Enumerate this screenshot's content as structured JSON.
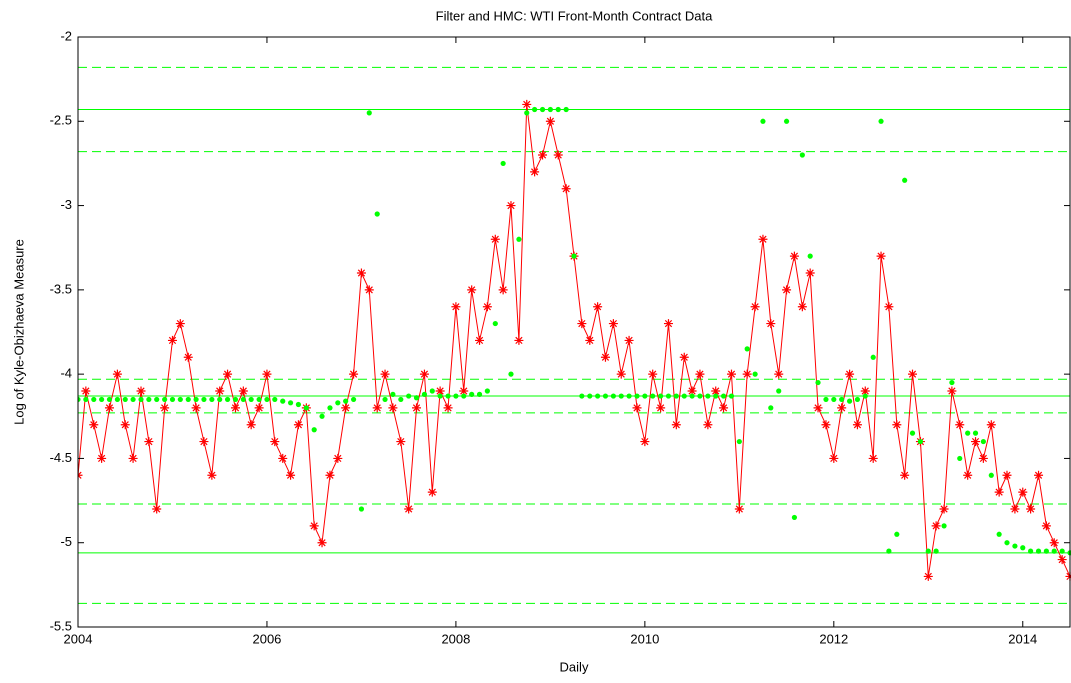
{
  "chart_data": {
    "type": "line",
    "title": "Filter and HMC: WTI Front-Month Contract Data",
    "x_label": "Daily",
    "y_label": "Log of Kyle-Obizhaeva Measure",
    "xlim": [
      2004,
      2014.5
    ],
    "ylim": [
      -5.5,
      -2
    ],
    "xticks": [
      2004,
      2006,
      2008,
      2010,
      2012,
      2014
    ],
    "yticks": [
      -5.5,
      -5,
      -4.5,
      -4,
      -3.5,
      -3,
      -2.5,
      -2
    ],
    "levels": [
      {
        "value": -2.18,
        "style": "dashed"
      },
      {
        "value": -2.43,
        "style": "solid"
      },
      {
        "value": -2.68,
        "style": "dashed"
      },
      {
        "value": -4.03,
        "style": "dashed"
      },
      {
        "value": -4.13,
        "style": "solid"
      },
      {
        "value": -4.23,
        "style": "dashed"
      },
      {
        "value": -4.77,
        "style": "dashed"
      },
      {
        "value": -5.06,
        "style": "solid"
      },
      {
        "value": -5.36,
        "style": "dashed"
      }
    ],
    "level_color": "#00ff00",
    "x": [
      2004,
      2004.083,
      2004.167,
      2004.25,
      2004.333,
      2004.417,
      2004.5,
      2004.583,
      2004.667,
      2004.75,
      2004.833,
      2004.917,
      2005,
      2005.083,
      2005.167,
      2005.25,
      2005.333,
      2005.417,
      2005.5,
      2005.583,
      2005.667,
      2005.75,
      2005.833,
      2005.917,
      2006,
      2006.083,
      2006.167,
      2006.25,
      2006.333,
      2006.417,
      2006.5,
      2006.583,
      2006.667,
      2006.75,
      2006.833,
      2006.917,
      2007,
      2007.083,
      2007.167,
      2007.25,
      2007.333,
      2007.417,
      2007.5,
      2007.583,
      2007.667,
      2007.75,
      2007.833,
      2007.917,
      2008,
      2008.083,
      2008.167,
      2008.25,
      2008.333,
      2008.417,
      2008.5,
      2008.583,
      2008.667,
      2008.75,
      2008.833,
      2008.917,
      2009,
      2009.083,
      2009.167,
      2009.25,
      2009.333,
      2009.417,
      2009.5,
      2009.583,
      2009.667,
      2009.75,
      2009.833,
      2009.917,
      2010,
      2010.083,
      2010.167,
      2010.25,
      2010.333,
      2010.417,
      2010.5,
      2010.583,
      2010.667,
      2010.75,
      2010.833,
      2010.917,
      2011,
      2011.083,
      2011.167,
      2011.25,
      2011.333,
      2011.417,
      2011.5,
      2011.583,
      2011.667,
      2011.75,
      2011.833,
      2011.917,
      2012,
      2012.083,
      2012.167,
      2012.25,
      2012.333,
      2012.417,
      2012.5,
      2012.583,
      2012.667,
      2012.75,
      2012.833,
      2012.917,
      2013,
      2013.083,
      2013.167,
      2013.25,
      2013.333,
      2013.417,
      2013.5,
      2013.583,
      2013.667,
      2013.75,
      2013.833,
      2013.917,
      2014,
      2014.083,
      2014.167,
      2014.25,
      2014.333,
      2014.417,
      2014.5
    ],
    "series": [
      {
        "color": "#ff0000",
        "marker": "star",
        "line": true,
        "values": [
          -4.6,
          -4.1,
          -4.3,
          -4.5,
          -4.2,
          -4.0,
          -4.3,
          -4.5,
          -4.1,
          -4.4,
          -4.8,
          -4.2,
          -3.8,
          -3.7,
          -3.9,
          -4.2,
          -4.4,
          -4.6,
          -4.1,
          -4.0,
          -4.2,
          -4.1,
          -4.3,
          -4.2,
          -4.0,
          -4.4,
          -4.5,
          -4.6,
          -4.3,
          -4.2,
          -4.9,
          -5.0,
          -4.6,
          -4.5,
          -4.2,
          -4.0,
          -3.4,
          -3.5,
          -4.2,
          -4.0,
          -4.2,
          -4.4,
          -4.8,
          -4.2,
          -4.0,
          -4.7,
          -4.1,
          -4.2,
          -3.6,
          -4.1,
          -3.5,
          -3.8,
          -3.6,
          -3.2,
          -3.5,
          -3.0,
          -3.8,
          -2.4,
          -2.8,
          -2.7,
          -2.5,
          -2.7,
          -2.9,
          -3.3,
          -3.7,
          -3.8,
          -3.6,
          -3.9,
          -3.7,
          -4.0,
          -3.8,
          -4.2,
          -4.4,
          -4.0,
          -4.2,
          -3.7,
          -4.3,
          -3.9,
          -4.1,
          -4.0,
          -4.3,
          -4.1,
          -4.2,
          -4.0,
          -4.8,
          -4.0,
          -3.6,
          -3.2,
          -3.7,
          -4.0,
          -3.5,
          -3.3,
          -3.6,
          -3.4,
          -4.2,
          -4.3,
          -4.5,
          -4.2,
          -4.0,
          -4.3,
          -4.1,
          -4.5,
          -3.3,
          -3.6,
          -4.3,
          -4.6,
          -4.0,
          -4.4,
          -5.2,
          -4.9,
          -4.8,
          -4.1,
          -4.3,
          -4.6,
          -4.4,
          -4.5,
          -4.3,
          -4.7,
          -4.6,
          -4.8,
          -4.7,
          -4.8,
          -4.6,
          -4.9,
          -5.0,
          -5.1,
          -5.2
        ]
      },
      {
        "color": "#00ff00",
        "marker": "dot",
        "line": false,
        "values": [
          -4.15,
          -4.15,
          -4.15,
          -4.15,
          -4.15,
          -4.15,
          -4.15,
          -4.15,
          -4.15,
          -4.15,
          -4.15,
          -4.15,
          -4.15,
          -4.15,
          -4.15,
          -4.15,
          -4.15,
          -4.15,
          -4.15,
          -4.15,
          -4.15,
          -4.15,
          -4.15,
          -4.15,
          -4.15,
          -4.15,
          -4.16,
          -4.17,
          -4.18,
          -4.2,
          -4.33,
          -4.25,
          -4.2,
          -4.17,
          -4.16,
          -4.15,
          -4.8,
          -2.45,
          -3.05,
          -4.15,
          -4.12,
          -4.15,
          -4.13,
          -4.14,
          -4.12,
          -4.1,
          -4.13,
          -4.13,
          -4.13,
          -4.13,
          -4.12,
          -4.12,
          -4.1,
          -3.7,
          -2.75,
          -4.0,
          -3.2,
          -2.45,
          -2.43,
          -2.43,
          -2.43,
          -2.43,
          -2.43,
          -3.3,
          -4.13,
          -4.13,
          -4.13,
          -4.13,
          -4.13,
          -4.13,
          -4.13,
          -4.13,
          -4.13,
          -4.13,
          -4.13,
          -4.13,
          -4.13,
          -4.13,
          -4.13,
          -4.13,
          -4.13,
          -4.13,
          -4.13,
          -4.13,
          -4.4,
          -3.85,
          -4.0,
          -2.5,
          -4.2,
          -4.1,
          -2.5,
          -4.85,
          -2.7,
          -3.3,
          -4.05,
          -4.15,
          -4.15,
          -4.15,
          -4.16,
          -4.15,
          -4.13,
          -3.9,
          -2.5,
          -5.05,
          -4.95,
          -2.85,
          -4.35,
          -4.4,
          -5.05,
          -5.05,
          -4.9,
          -4.05,
          -4.5,
          -4.35,
          -4.35,
          -4.4,
          -4.6,
          -4.95,
          -5.0,
          -5.02,
          -5.03,
          -5.05,
          -5.05,
          -5.05,
          -5.05,
          -5.05,
          -5.06
        ]
      }
    ]
  }
}
